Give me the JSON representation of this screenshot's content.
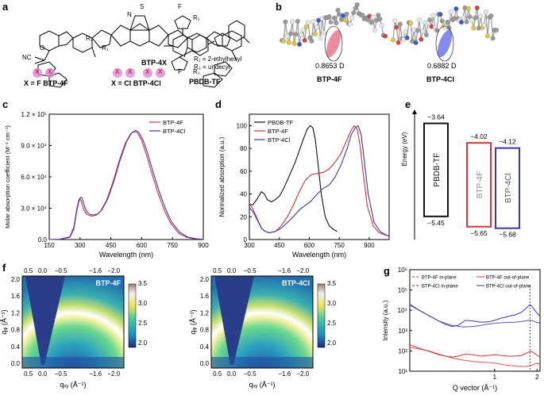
{
  "panels": {
    "a": {
      "letter": "a",
      "struct_label_1": "BTP-4X",
      "x_f": "X = F  BTP-4F",
      "x_cl": "X = Cl  BTP-4Cl",
      "polymer": "PBDB-TF",
      "r1": "R₁ = 2-ethylhexyl",
      "r2": "R₂ = undecyl",
      "atoms": {
        "R1": "R₁",
        "R2": "R₂",
        "S": "S",
        "N": "N",
        "F": "F",
        "O": "O",
        "CN": "CN",
        "NC": "NC",
        "X": "X"
      }
    },
    "b": {
      "letter": "b",
      "dipole_4f": "0.8653 D",
      "dipole_4cl": "0.6882 D",
      "label_4f": "BTP-4F",
      "label_4cl": "BTP-4Cl"
    },
    "c": {
      "letter": "c"
    },
    "d": {
      "letter": "d"
    },
    "e": {
      "letter": "e"
    },
    "f": {
      "letter": "f"
    },
    "g": {
      "letter": "g"
    }
  },
  "chart_data": [
    {
      "id": "c",
      "type": "line",
      "xlabel": "Wavelength (nm)",
      "ylabel": "Molar absorption coefficient (M⁻¹ cm⁻¹)",
      "xlim": [
        150,
        900
      ],
      "ylim": [
        0,
        120000
      ],
      "xticks": [
        "150",
        "300",
        "450",
        "600",
        "750",
        "900"
      ],
      "yticks": [
        "0.0",
        "3.0 × 10⁴",
        "6.0 × 10⁴",
        "9.0 × 10⁴",
        "1.2 × 10⁵"
      ],
      "ytick_values": [
        0,
        30000,
        60000,
        90000,
        120000
      ],
      "legend_position": "top-right",
      "series": [
        {
          "name": "BTP-4F",
          "color": "#e0303a",
          "x": [
            150,
            200,
            250,
            270,
            285,
            295,
            300,
            305,
            310,
            320,
            330,
            345,
            360,
            380,
            400,
            430,
            460,
            490,
            520,
            545,
            565,
            580,
            600,
            620,
            650,
            680,
            710,
            740,
            780,
            820,
            860,
            900
          ],
          "y": [
            0,
            200,
            2000,
            10000,
            28000,
            37000,
            38500,
            37000,
            33500,
            28000,
            24500,
            23000,
            22500,
            23500,
            27000,
            38000,
            55000,
            75000,
            92000,
            101000,
            103500,
            102000,
            95000,
            83000,
            63000,
            44000,
            28000,
            16000,
            6000,
            2000,
            600,
            200
          ]
        },
        {
          "name": "BTP-4Cl",
          "color": "#3a3ab0",
          "x": [
            150,
            200,
            250,
            270,
            285,
            295,
            305,
            310,
            315,
            325,
            335,
            350,
            365,
            385,
            405,
            435,
            465,
            495,
            525,
            550,
            570,
            585,
            605,
            625,
            655,
            685,
            715,
            745,
            785,
            825,
            865,
            900
          ],
          "y": [
            0,
            200,
            2500,
            12000,
            30000,
            38500,
            40500,
            39500,
            36000,
            30000,
            26000,
            24000,
            23500,
            24500,
            28000,
            39000,
            56000,
            76000,
            93000,
            102000,
            104500,
            103000,
            96000,
            85000,
            65000,
            46000,
            30000,
            17000,
            7000,
            2200,
            700,
            200
          ]
        }
      ]
    },
    {
      "id": "d",
      "type": "line",
      "xlabel": "Wavelength (nm)",
      "ylabel": "Normalized absorption (a.u.)",
      "xlim": [
        300,
        1000
      ],
      "ylim": [
        0,
        110
      ],
      "xticks": [
        "300",
        "450",
        "600",
        "750",
        "900"
      ],
      "xtick_values": [
        300,
        450,
        600,
        750,
        900
      ],
      "yticks": [
        "0",
        "20",
        "40",
        "60",
        "80",
        "100"
      ],
      "ytick_values": [
        0,
        20,
        40,
        60,
        80,
        100
      ],
      "legend_position": "top-left",
      "series": [
        {
          "name": "PBDB-TF",
          "color": "#111111",
          "x": [
            300,
            320,
            340,
            360,
            375,
            390,
            410,
            430,
            450,
            470,
            490,
            510,
            530,
            550,
            570,
            590,
            605,
            618,
            630,
            645,
            660,
            680,
            700,
            720,
            740
          ],
          "y": [
            30,
            31,
            36,
            42,
            40,
            35,
            33,
            35,
            38,
            44,
            52,
            60,
            68,
            78,
            88,
            97,
            100,
            98,
            88,
            65,
            40,
            20,
            12,
            9,
            7
          ]
        },
        {
          "name": "BTP-4F",
          "color": "#e0303a",
          "x": [
            300,
            320,
            340,
            360,
            380,
            400,
            430,
            460,
            490,
            520,
            550,
            580,
            610,
            640,
            670,
            700,
            730,
            760,
            790,
            810,
            825,
            840,
            855,
            870,
            890,
            920,
            950,
            980,
            1000
          ],
          "y": [
            32,
            26,
            18,
            10,
            7,
            6,
            7,
            12,
            20,
            30,
            42,
            52,
            57,
            58,
            59,
            62,
            68,
            76,
            88,
            96,
            100,
            97,
            82,
            58,
            30,
            12,
            6,
            4,
            3
          ]
        },
        {
          "name": "BTP-4Cl",
          "color": "#3a3ab0",
          "x": [
            300,
            320,
            340,
            360,
            380,
            400,
            430,
            460,
            490,
            520,
            550,
            580,
            610,
            640,
            670,
            700,
            730,
            760,
            790,
            810,
            830,
            845,
            860,
            875,
            895,
            925,
            955,
            985,
            1000
          ],
          "y": [
            28,
            24,
            17,
            10,
            7,
            6,
            7,
            10,
            15,
            20,
            26,
            30,
            34,
            40,
            45,
            48,
            55,
            66,
            80,
            92,
            98,
            100,
            92,
            70,
            40,
            15,
            7,
            4,
            3
          ]
        }
      ]
    },
    {
      "id": "e",
      "type": "diagram",
      "ylabel": "Energy (eV)",
      "levels": [
        {
          "name": "PBDB-TF",
          "lumo": "−3.64",
          "homo": "−5.45",
          "lumo_v": -3.64,
          "homo_v": -5.45,
          "color": "#111111",
          "text_color": "#111111"
        },
        {
          "name": "BTP-4F",
          "lumo": "−4.02",
          "homo": "−5.65",
          "lumo_v": -4.02,
          "homo_v": -5.65,
          "color": "#e0303a",
          "text_color": "#8a8a8a"
        },
        {
          "name": "BTP-4Cl",
          "lumo": "−4.12",
          "homo": "−5.68",
          "lumo_v": -4.12,
          "homo_v": -5.68,
          "color": "#3a3ab0",
          "text_color": "#555555"
        }
      ]
    },
    {
      "id": "f",
      "type": "heatmap",
      "xlabel": "qₓᵧ (Å⁻¹)",
      "ylabel": "qᵩ (Å⁻¹)",
      "top_ticks": [
        "0.5",
        "0.0",
        "−0.5",
        "−1.6",
        "−2.0"
      ],
      "bottom_ticks": [
        "0.5",
        "0.0",
        "−0.5",
        "−1.6",
        "−2.0"
      ],
      "yticks": [
        "0.0",
        "0.4",
        "0.8",
        "1.2",
        "1.6",
        "2.0"
      ],
      "colorbar_ticks": [
        "2.0",
        "2.5",
        "3.0",
        "3.5"
      ],
      "maps": [
        {
          "name": "BTP-4F"
        },
        {
          "name": "BTP-4Cl"
        }
      ]
    },
    {
      "id": "g",
      "type": "line",
      "xlabel": "Q vector (Å⁻¹)",
      "ylabel": "Intensity (a.u.)",
      "xscale": "log",
      "yscale": "log",
      "xlim": [
        0.25,
        2.1
      ],
      "ylim": [
        10,
        1000000
      ],
      "xticks": [
        "1",
        "2"
      ],
      "xtick_values": [
        1,
        2
      ],
      "yticks": [
        "10¹",
        "10²",
        "10³",
        "10⁴",
        "10⁵",
        "10⁶"
      ],
      "ytick_values": [
        10,
        100,
        1000,
        10000,
        100000,
        1000000
      ],
      "legend_position": "top",
      "series": [
        {
          "name": "BTP-4F in-plane",
          "color": "#e0303a",
          "dash": true,
          "x": [
            0.25,
            0.3,
            0.35,
            0.4,
            0.5,
            0.6,
            0.7,
            0.8,
            0.9,
            1.0,
            1.2,
            1.4,
            1.6,
            1.75,
            1.85,
            2.0,
            2.1
          ],
          "y": [
            150,
            120,
            95,
            70,
            45,
            35,
            30,
            28,
            27,
            25,
            20,
            18,
            17,
            18,
            20,
            25,
            22
          ]
        },
        {
          "name": "BTP-4F out-of-plane",
          "color": "#e0303a",
          "x": [
            0.25,
            0.28,
            0.32,
            0.36,
            0.4,
            0.45,
            0.5,
            0.55,
            0.62,
            0.7,
            0.8,
            0.9,
            1.0,
            1.1,
            1.25,
            1.4,
            1.55,
            1.7,
            1.78,
            1.85,
            1.95,
            2.05,
            2.1
          ],
          "y": [
            200,
            150,
            110,
            85,
            65,
            55,
            50,
            55,
            70,
            65,
            55,
            60,
            65,
            60,
            55,
            55,
            60,
            80,
            95,
            90,
            70,
            55,
            50
          ]
        },
        {
          "name": "BTP-4Cl in-plane",
          "color": "#3a3ab0",
          "dash": true,
          "x": [
            0.25,
            0.3,
            0.35,
            0.4,
            0.5,
            0.6,
            0.7,
            0.8,
            0.9,
            1.0,
            1.2,
            1.4,
            1.6,
            1.75,
            1.85,
            2.0,
            2.1
          ],
          "y": [
            18000,
            9000,
            5000,
            3000,
            1800,
            1500,
            1600,
            1800,
            2100,
            2300,
            2500,
            2600,
            2900,
            3200,
            3100,
            2500,
            2300
          ]
        },
        {
          "name": "BTP-4Cl out-of-plane",
          "color": "#3a3ab0",
          "x": [
            0.25,
            0.28,
            0.32,
            0.36,
            0.4,
            0.45,
            0.5,
            0.55,
            0.62,
            0.7,
            0.8,
            0.9,
            1.0,
            1.1,
            1.25,
            1.4,
            1.55,
            1.7,
            1.78,
            1.85,
            1.95,
            2.05,
            2.1
          ],
          "y": [
            20000,
            12000,
            7000,
            4500,
            3000,
            2000,
            1600,
            1800,
            3200,
            3000,
            2600,
            2700,
            3200,
            4000,
            5000,
            6000,
            8000,
            14000,
            19000,
            15000,
            9000,
            6000,
            5000
          ]
        }
      ],
      "legend": [
        "BTP-4F in-plane",
        "BTP-4F out-of-plane",
        "BTP-4Cl in-plane",
        "BTP-4Cl out-of-plane"
      ]
    }
  ]
}
